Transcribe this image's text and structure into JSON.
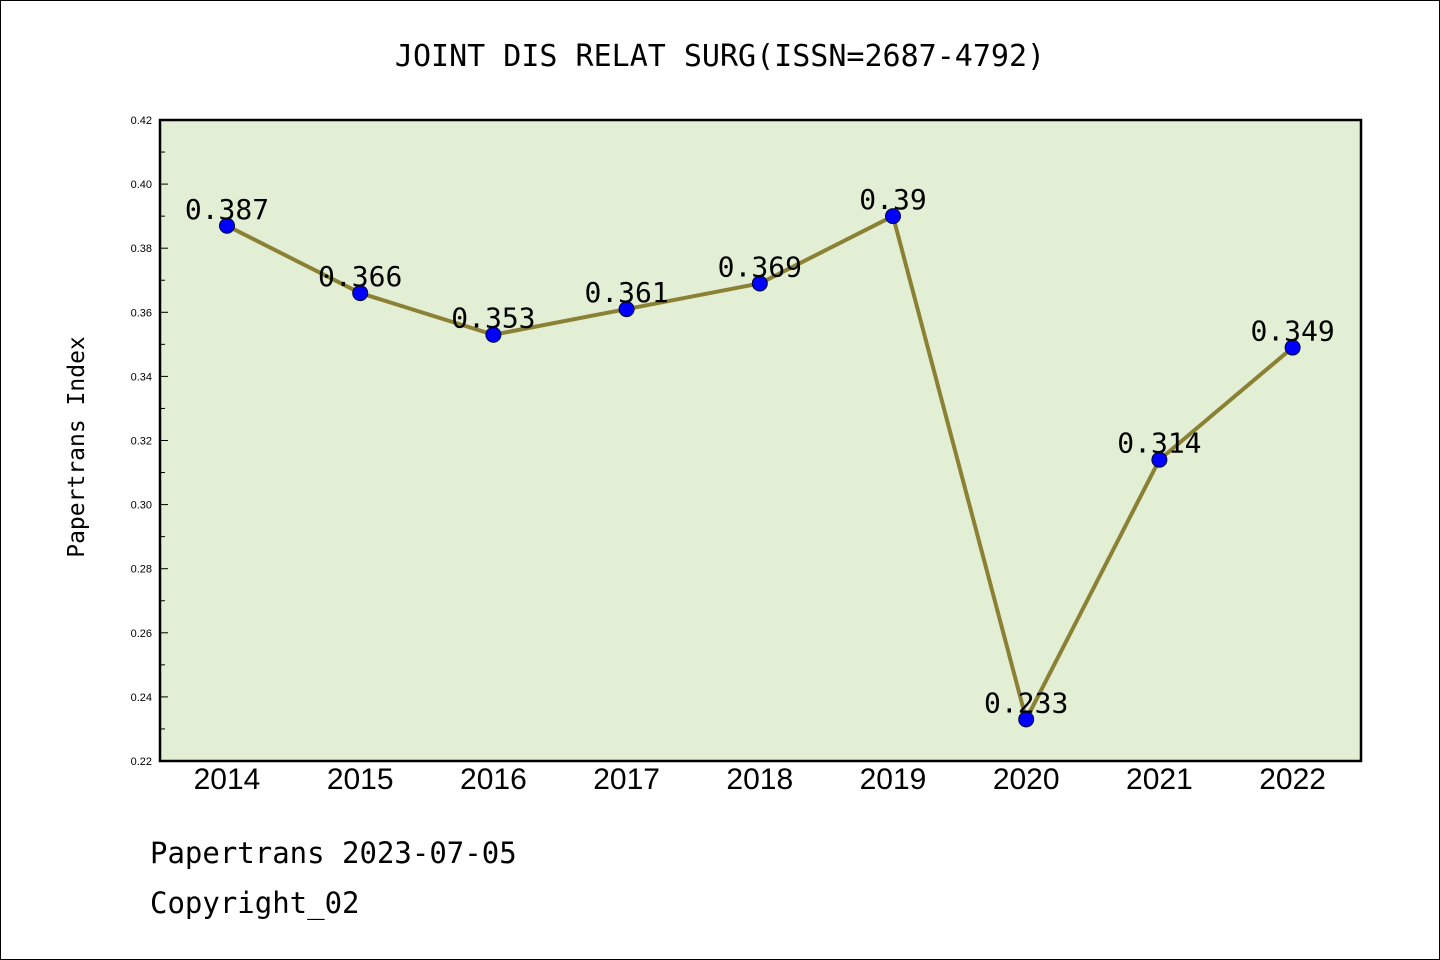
{
  "footer": {
    "line1": "Papertrans 2023-07-05",
    "line2": "Copyright_02"
  },
  "colors": {
    "plot_bg": "#e2efd4",
    "line": "#8b8134",
    "marker": "#0000ff",
    "axis": "#000000"
  },
  "chart_data": {
    "type": "line",
    "title": "JOINT DIS RELAT SURG(ISSN=2687-4792)",
    "xlabel": "",
    "ylabel": "Papertrans Index",
    "categories": [
      "2014",
      "2015",
      "2016",
      "2017",
      "2018",
      "2019",
      "2020",
      "2021",
      "2022"
    ],
    "series": [
      {
        "values": [
          0.387,
          0.366,
          0.353,
          0.361,
          0.369,
          0.39,
          0.233,
          0.314,
          0.349
        ],
        "labels": [
          "0.387",
          "0.366",
          "0.353",
          "0.361",
          "0.369",
          "0.39",
          "0.233",
          "0.314",
          "0.349"
        ]
      }
    ],
    "ylim": [
      0.22,
      0.42
    ],
    "yticks": [
      "0.22",
      "0.24",
      "0.26",
      "0.28",
      "0.30",
      "0.32",
      "0.34",
      "0.36",
      "0.38",
      "0.40",
      "0.42"
    ],
    "grid": false,
    "legend": "none"
  }
}
